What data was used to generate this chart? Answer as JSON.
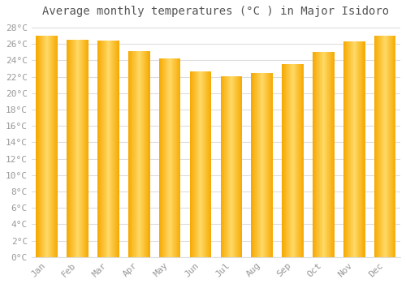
{
  "title": "Average monthly temperatures (°C ) in Major Isidoro",
  "months": [
    "Jan",
    "Feb",
    "Mar",
    "Apr",
    "May",
    "Jun",
    "Jul",
    "Aug",
    "Sep",
    "Oct",
    "Nov",
    "Dec"
  ],
  "values": [
    27.0,
    26.5,
    26.4,
    25.1,
    24.2,
    22.7,
    22.1,
    22.5,
    23.6,
    25.0,
    26.3,
    27.0
  ],
  "bar_color_edge": "#F5A800",
  "bar_color_center": "#FFD966",
  "background_color": "#FFFFFF",
  "grid_color": "#DDDDDD",
  "ytick_min": 0,
  "ytick_max": 28,
  "ytick_step": 2,
  "title_fontsize": 10,
  "tick_fontsize": 8,
  "font_color": "#999999",
  "title_color": "#555555"
}
